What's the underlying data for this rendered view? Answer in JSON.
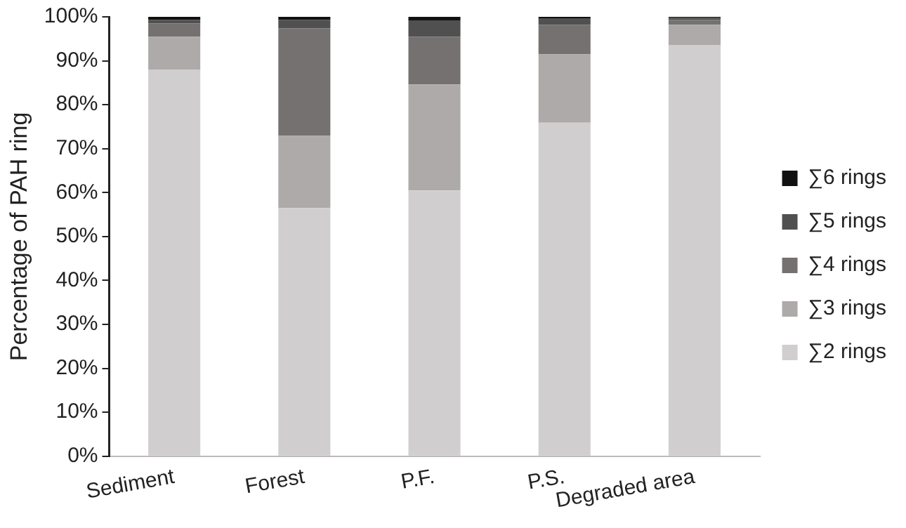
{
  "chart_data": {
    "type": "bar",
    "stacked": true,
    "ylabel": "Percentage of PAH ring",
    "categories": [
      "Sediment",
      "Forest",
      "P.F.",
      "P.S.",
      "Degraded area"
    ],
    "series": [
      {
        "name": "∑2 rings",
        "color": "#d0cecf",
        "values": [
          88,
          56.5,
          60.5,
          75.9,
          93.6
        ]
      },
      {
        "name": "∑3 rings",
        "color": "#aeaaa9",
        "values": [
          7.5,
          16.4,
          24.1,
          15.6,
          4.6
        ]
      },
      {
        "name": "∑4 rings",
        "color": "#757170",
        "values": [
          3,
          24.5,
          10.9,
          6.7,
          1.1
        ]
      },
      {
        "name": "∑5 rings",
        "color": "#505050",
        "values": [
          0.8,
          1.9,
          3.7,
          1.5,
          0.5
        ]
      },
      {
        "name": "∑6 rings",
        "color": "#111111",
        "values": [
          0.7,
          0.7,
          0.8,
          0.3,
          0.2
        ]
      }
    ],
    "ylim": [
      0,
      100
    ],
    "yticks": [
      {
        "value": 0,
        "label": "0%"
      },
      {
        "value": 10,
        "label": "10%"
      },
      {
        "value": 20,
        "label": "20%"
      },
      {
        "value": 30,
        "label": "30%"
      },
      {
        "value": 40,
        "label": "40%"
      },
      {
        "value": 50,
        "label": "50%"
      },
      {
        "value": 60,
        "label": "60%"
      },
      {
        "value": 70,
        "label": "70%"
      },
      {
        "value": 80,
        "label": "80%"
      },
      {
        "value": 90,
        "label": "90%"
      },
      {
        "value": 100,
        "label": "100%"
      }
    ],
    "grid": false,
    "legend": "right"
  }
}
